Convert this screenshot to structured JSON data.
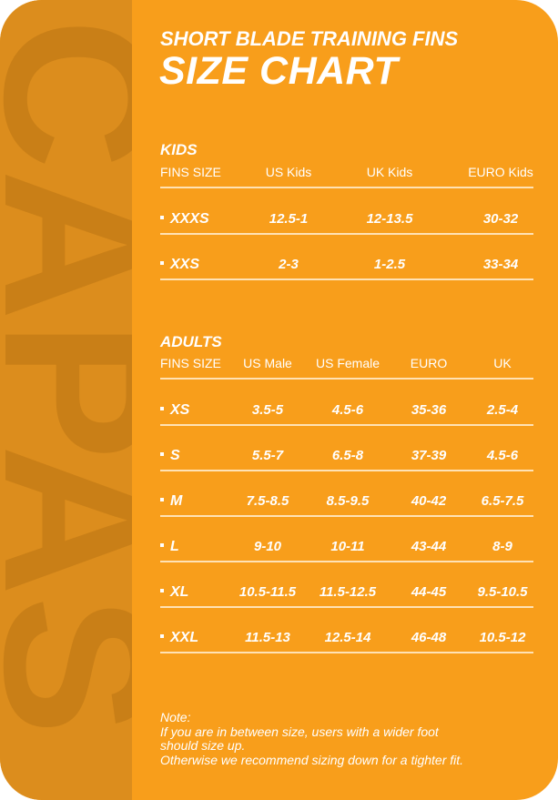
{
  "brand_watermark": "CAPAS",
  "colors": {
    "card": "#f89e1b",
    "strip": "#dc8d1d",
    "text": "#ffffff"
  },
  "header": {
    "subtitle": "SHORT BLADE TRAINING FINS",
    "title": "SIZE CHART"
  },
  "kids": {
    "title": "KIDS",
    "columns": [
      "FINS SIZE",
      "US Kids",
      "UK Kids",
      "EURO Kids"
    ],
    "rows": [
      [
        "XXXS",
        "12.5-1",
        "12-13.5",
        "30-32"
      ],
      [
        "XXS",
        "2-3",
        "1-2.5",
        "33-34"
      ]
    ]
  },
  "adults": {
    "title": "ADULTS",
    "columns": [
      "FINS SIZE",
      "US Male",
      "US Female",
      "EURO",
      "UK"
    ],
    "rows": [
      [
        "XS",
        "3.5-5",
        "4.5-6",
        "35-36",
        "2.5-4"
      ],
      [
        "S",
        "5.5-7",
        "6.5-8",
        "37-39",
        "4.5-6"
      ],
      [
        "M",
        "7.5-8.5",
        "8.5-9.5",
        "40-42",
        "6.5-7.5"
      ],
      [
        "L",
        "9-10",
        "10-11",
        "43-44",
        "8-9"
      ],
      [
        "XL",
        "10.5-11.5",
        "11.5-12.5",
        "44-45",
        "9.5-10.5"
      ],
      [
        "XXL",
        "11.5-13",
        "12.5-14",
        "46-48",
        "10.5-12"
      ]
    ]
  },
  "note": {
    "label": "Note:",
    "line1": "If you are in between size, users with a wider foot",
    "line2": "should size up.",
    "line3": "Otherwise we recommend sizing down for a tighter fit."
  }
}
